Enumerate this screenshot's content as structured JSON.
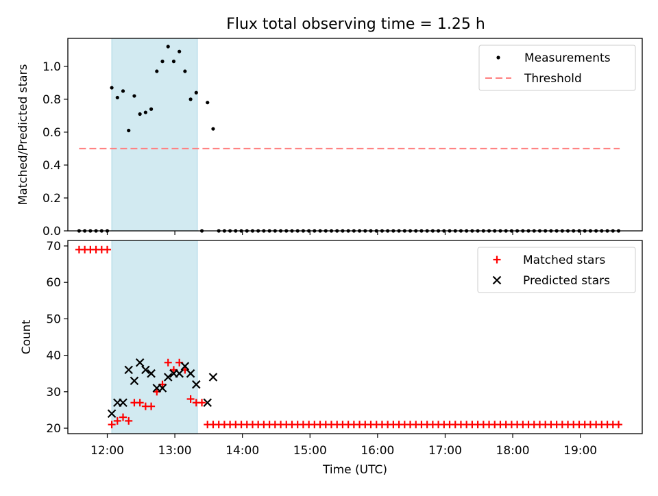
{
  "title": "Flux total observing time = 1.25 h",
  "colors": {
    "shade": "#add8e6",
    "matched": "#ff0000",
    "predicted": "#000000",
    "threshold": "#ff7f7f",
    "measurements": "#000000"
  },
  "chart_data": [
    {
      "type": "scatter",
      "panel": "top",
      "ylabel": "Matched/Predicted stars",
      "xlim": [
        "11:25",
        "19:55"
      ],
      "ylim": [
        0,
        1.17
      ],
      "yticks": [
        0.0,
        0.2,
        0.4,
        0.6,
        0.8,
        1.0
      ],
      "xticks": [
        "12:00",
        "13:00",
        "14:00",
        "15:00",
        "16:00",
        "17:00",
        "18:00",
        "19:00"
      ],
      "shaded_span": [
        "12:04",
        "13:20"
      ],
      "legend": [
        "Measurements",
        "Threshold"
      ],
      "legend_position": "top-right",
      "series": [
        {
          "name": "Measurements",
          "points": [
            [
              "11:35",
              0
            ],
            [
              "11:40",
              0
            ],
            [
              "11:45",
              0
            ],
            [
              "11:50",
              0
            ],
            [
              "11:55",
              0
            ],
            [
              "12:00",
              0
            ],
            [
              "12:04",
              0.87
            ],
            [
              "12:09",
              0.81
            ],
            [
              "12:14",
              0.85
            ],
            [
              "12:19",
              0.61
            ],
            [
              "12:24",
              0.82
            ],
            [
              "12:29",
              0.71
            ],
            [
              "12:34",
              0.72
            ],
            [
              "12:39",
              0.74
            ],
            [
              "12:44",
              0.97
            ],
            [
              "12:49",
              1.03
            ],
            [
              "12:54",
              1.12
            ],
            [
              "12:59",
              1.03
            ],
            [
              "13:04",
              1.09
            ],
            [
              "13:09",
              0.97
            ],
            [
              "13:14",
              0.8
            ],
            [
              "13:19",
              0.84
            ],
            [
              "13:24",
              0
            ],
            [
              "13:29",
              0.78
            ],
            [
              "13:34",
              0.62
            ]
          ],
          "zero_run": {
            "start": "13:39",
            "end": "19:35",
            "step_minutes": 5,
            "value": 0
          }
        },
        {
          "name": "Threshold",
          "style": "dashed",
          "points": [
            [
              "11:35",
              0.5
            ],
            [
              "19:35",
              0.5
            ]
          ]
        }
      ]
    },
    {
      "type": "scatter",
      "panel": "bottom",
      "xlabel": "Time (UTC)",
      "ylabel": "Count",
      "xlim": [
        "11:25",
        "19:55"
      ],
      "ylim": [
        18.5,
        71.5
      ],
      "yticks": [
        20,
        30,
        40,
        50,
        60,
        70
      ],
      "xticks": [
        "12:00",
        "13:00",
        "14:00",
        "15:00",
        "16:00",
        "17:00",
        "18:00",
        "19:00"
      ],
      "shaded_span": [
        "12:04",
        "13:20"
      ],
      "legend": [
        "Matched stars",
        "Predicted stars"
      ],
      "legend_position": "top-right",
      "series": [
        {
          "name": "Matched stars",
          "marker": "+",
          "points": [
            [
              "11:35",
              69
            ],
            [
              "11:40",
              69
            ],
            [
              "11:45",
              69
            ],
            [
              "11:50",
              69
            ],
            [
              "11:55",
              69
            ],
            [
              "12:00",
              69
            ],
            [
              "12:04",
              21
            ],
            [
              "12:09",
              22
            ],
            [
              "12:14",
              23
            ],
            [
              "12:19",
              22
            ],
            [
              "12:24",
              27
            ],
            [
              "12:29",
              27
            ],
            [
              "12:34",
              26
            ],
            [
              "12:39",
              26
            ],
            [
              "12:44",
              30
            ],
            [
              "12:49",
              32
            ],
            [
              "12:54",
              38
            ],
            [
              "12:59",
              36
            ],
            [
              "13:04",
              38
            ],
            [
              "13:09",
              36
            ],
            [
              "13:14",
              28
            ],
            [
              "13:19",
              27
            ],
            [
              "13:24",
              27
            ]
          ],
          "constant_run": {
            "start": "13:29",
            "end": "19:35",
            "step_minutes": 5,
            "value": 21
          }
        },
        {
          "name": "Predicted stars",
          "marker": "x",
          "points": [
            [
              "12:04",
              24
            ],
            [
              "12:09",
              27
            ],
            [
              "12:14",
              27
            ],
            [
              "12:19",
              36
            ],
            [
              "12:24",
              33
            ],
            [
              "12:29",
              38
            ],
            [
              "12:34",
              36
            ],
            [
              "12:39",
              35
            ],
            [
              "12:44",
              31
            ],
            [
              "12:49",
              31
            ],
            [
              "12:54",
              34
            ],
            [
              "12:59",
              35
            ],
            [
              "13:04",
              35
            ],
            [
              "13:09",
              37
            ],
            [
              "13:14",
              35
            ],
            [
              "13:19",
              32
            ],
            [
              "13:29",
              27
            ],
            [
              "13:34",
              34
            ]
          ]
        }
      ]
    }
  ]
}
